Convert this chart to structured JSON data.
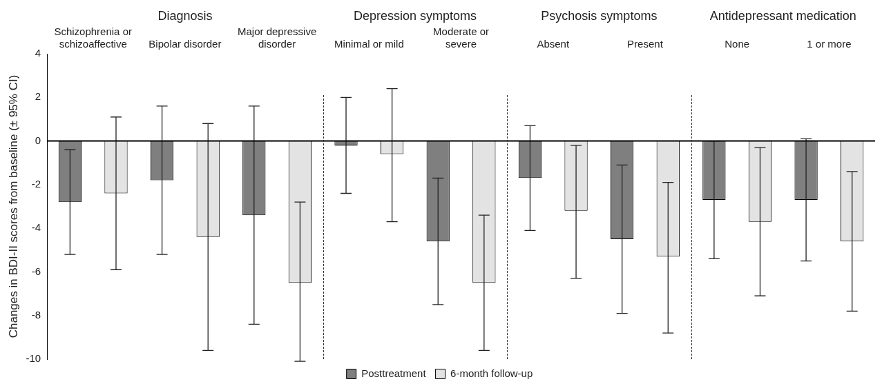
{
  "chart_data": {
    "type": "bar",
    "ylabel": "Changes in BDI-II scores from baseline (± 95% CI)",
    "categories": [
      "Schizophrenia or schizoaffective",
      "Bipolar disorder",
      "Major depressive disorder",
      "Minimal or mild",
      "Moderate or severe",
      "Absent",
      "Present",
      "None",
      "1 or more"
    ],
    "series": [
      {
        "name": "Posttreatment",
        "color": "#7f7f7f",
        "values": [
          -2.8,
          -1.8,
          -3.4,
          -0.2,
          -4.6,
          -1.7,
          -4.5,
          -2.7,
          -2.7
        ],
        "errors": [
          [
            -5.2,
            -0.4
          ],
          [
            -5.2,
            1.6
          ],
          [
            -8.4,
            1.6
          ],
          [
            -2.4,
            2.0
          ],
          [
            -7.5,
            -1.7
          ],
          [
            -4.1,
            0.7
          ],
          [
            -7.9,
            -1.1
          ],
          [
            -5.4,
            0.0
          ],
          [
            -5.5,
            0.1
          ]
        ]
      },
      {
        "name": "6-month follow-up",
        "color": "#e3e3e3",
        "values": [
          -2.4,
          -4.4,
          -6.5,
          -0.6,
          -6.5,
          -3.2,
          -5.3,
          -3.7,
          -4.6
        ],
        "errors": [
          [
            -5.9,
            1.1
          ],
          [
            -9.6,
            0.8
          ],
          [
            -10.1,
            -2.8
          ],
          [
            -3.7,
            2.4
          ],
          [
            -9.6,
            -3.4
          ],
          [
            -6.3,
            -0.2
          ],
          [
            -8.8,
            -1.9
          ],
          [
            -7.1,
            -0.3
          ],
          [
            -7.8,
            -1.4
          ]
        ]
      }
    ],
    "ylim": [
      -10,
      4
    ],
    "yticks": [
      -10,
      -8,
      -6,
      -4,
      -2,
      0,
      2,
      4
    ],
    "ref_lines": [
      {
        "axis": "y",
        "value": 0,
        "color": "#000000",
        "line_style": "solid"
      }
    ],
    "annotations": [
      "Diagnosis",
      "Depression symptoms",
      "Psychosis symptoms",
      "Antidepressant medication"
    ],
    "legend": "bottom",
    "grid": false
  }
}
